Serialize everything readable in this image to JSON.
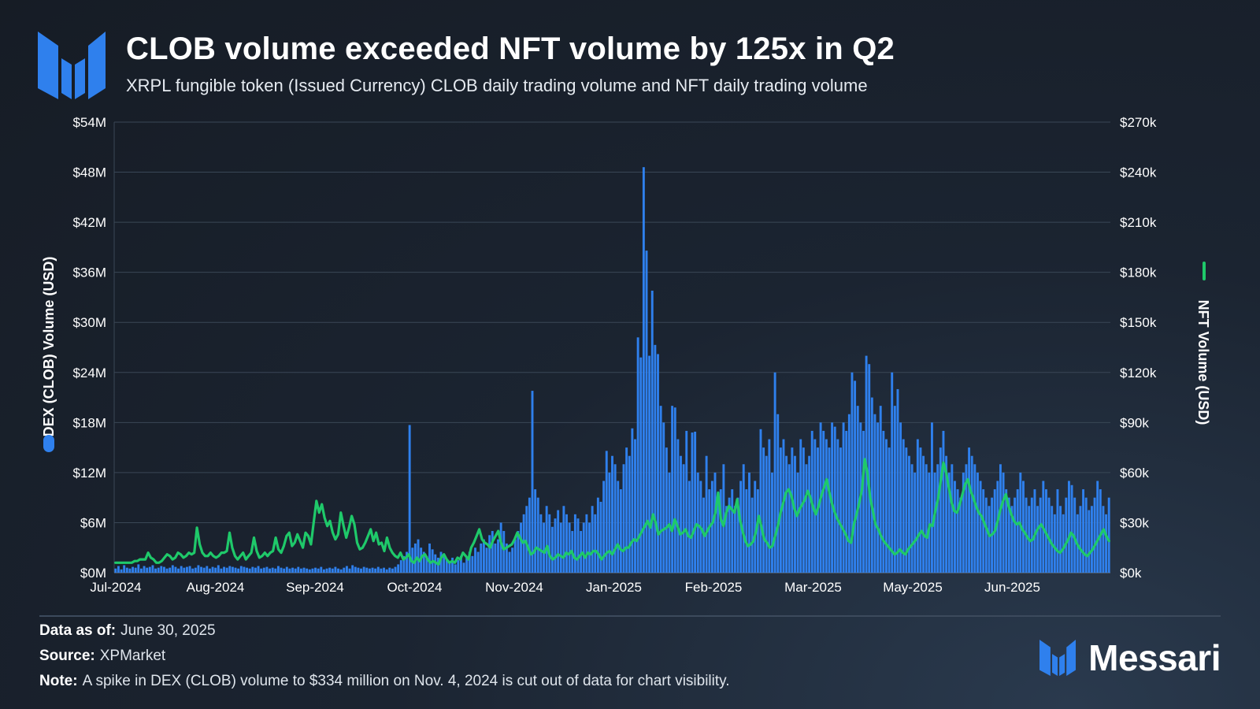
{
  "header": {
    "title": "CLOB volume exceeded NFT volume by 125x in Q2",
    "subtitle": "XRPL fungible token (Issued Currency) CLOB daily trading volume and NFT daily trading volume"
  },
  "footer": {
    "data_as_of_label": "Data as of:",
    "data_as_of_value": "June 30, 2025",
    "source_label": "Source:",
    "source_value": "XPMarket",
    "note_label": "Note:",
    "note_value": "A spike in DEX (CLOB) volume to $334 million on Nov. 4, 2024 is cut out of data for chart visibility."
  },
  "brand": {
    "name": "Messari"
  },
  "colors": {
    "bar": "#2f80ed",
    "line": "#1fc96a",
    "grid": "#3a4756",
    "axis_text": "#ffffff",
    "logo": "#2f80ed"
  },
  "chart_data": {
    "type": "bar+line",
    "title": "CLOB volume exceeded NFT volume by 125x in Q2",
    "x_tick_labels": [
      "Jul-2024",
      "Aug-2024",
      "Sep-2024",
      "Oct-2024",
      "Nov-2024",
      "Jan-2025",
      "Feb-2025",
      "Mar-2025",
      "May-2025",
      "Jun-2025"
    ],
    "left_axis": {
      "label": "DEX (CLOB) Volume (USD)",
      "ylim": [
        0,
        54
      ],
      "unit": "USD millions",
      "tick_labels": [
        "$0M",
        "$6M",
        "$12M",
        "$18M",
        "$24M",
        "$30M",
        "$36M",
        "$42M",
        "$48M",
        "$54M"
      ]
    },
    "right_axis": {
      "label": "NFT Volume (USD)",
      "ylim": [
        0,
        270
      ],
      "unit": "USD thousands",
      "tick_labels": [
        "$0k",
        "$30k",
        "$60k",
        "$90k",
        "$120k",
        "$150k",
        "$180k",
        "$210k",
        "$240k",
        "$270k"
      ]
    },
    "date_range": [
      "2024-07-01",
      "2025-06-30"
    ],
    "series": [
      {
        "name": "DEX (CLOB) Volume (USD)",
        "type": "bar",
        "axis": "left",
        "unit": "USD millions",
        "values": [
          0.5,
          0.8,
          0.4,
          0.9,
          0.6,
          0.5,
          0.7,
          0.6,
          1.0,
          0.5,
          0.8,
          0.6,
          0.7,
          0.9,
          0.5,
          0.6,
          0.8,
          0.7,
          0.5,
          0.6,
          0.9,
          0.7,
          0.5,
          0.8,
          0.6,
          0.7,
          0.8,
          0.5,
          0.6,
          0.9,
          0.7,
          0.6,
          0.8,
          0.5,
          0.7,
          0.6,
          0.9,
          0.5,
          0.7,
          0.6,
          0.8,
          0.7,
          0.6,
          0.5,
          0.8,
          0.7,
          0.6,
          0.5,
          0.7,
          0.6,
          0.8,
          0.5,
          0.6,
          0.7,
          0.5,
          0.6,
          0.5,
          0.8,
          0.6,
          0.5,
          0.7,
          0.5,
          0.6,
          0.5,
          0.7,
          0.5,
          0.6,
          0.5,
          0.4,
          0.5,
          0.6,
          0.5,
          0.7,
          0.4,
          0.5,
          0.6,
          0.5,
          0.7,
          0.5,
          0.4,
          0.6,
          0.8,
          0.5,
          0.9,
          0.7,
          0.6,
          0.5,
          0.7,
          0.6,
          0.5,
          0.6,
          0.5,
          0.7,
          0.5,
          0.6,
          0.4,
          0.6,
          0.5,
          0.7,
          1.0,
          1.5,
          2.0,
          2.5,
          17.7,
          3.0,
          3.5,
          4.0,
          3.0,
          2.5,
          2.0,
          3.5,
          2.8,
          2.2,
          1.8,
          2.5,
          2.0,
          1.5,
          1.2,
          1.8,
          1.0,
          1.5,
          2.0,
          1.2,
          1.8,
          2.5,
          2.0,
          3.0,
          2.5,
          3.5,
          4.0,
          3.0,
          4.5,
          5.0,
          3.5,
          4.0,
          6.0,
          5.0,
          3.5,
          2.5,
          3.0,
          4.0,
          5.0,
          6.0,
          7.0,
          8.0,
          9.0,
          21.8,
          10.0,
          9.0,
          7.0,
          6.0,
          8.0,
          7.0,
          5.5,
          6.5,
          7.5,
          6.0,
          8.0,
          7.0,
          6.0,
          5.0,
          7.0,
          6.5,
          5.0,
          6.0,
          7.0,
          6.0,
          8.0,
          7.0,
          9.0,
          8.5,
          11.0,
          14.6,
          12.0,
          14.0,
          13.0,
          11.0,
          10.0,
          13.0,
          15.0,
          14.0,
          17.3,
          16.0,
          28.2,
          25.8,
          48.6,
          38.6,
          26.0,
          33.8,
          27.3,
          26.2,
          20.0,
          18.0,
          15.0,
          12.0,
          20.0,
          19.8,
          16.0,
          14.0,
          13.0,
          17.0,
          11.0,
          16.8,
          16.9,
          12.0,
          11.0,
          9.0,
          14.0,
          10.0,
          11.0,
          12.0,
          9.0,
          10.0,
          13.0,
          8.0,
          9.0,
          10.0,
          8.0,
          9.0,
          11.0,
          13.0,
          10.0,
          12.0,
          9.0,
          11.0,
          10.0,
          17.2,
          15.0,
          14.0,
          16.0,
          12.0,
          24.0,
          19.0,
          15.0,
          16.0,
          14.0,
          13.0,
          15.0,
          14.0,
          12.0,
          16.0,
          15.0,
          13.0,
          14.0,
          17.0,
          16.0,
          15.0,
          18.0,
          17.0,
          16.0,
          15.0,
          18.0,
          17.5,
          16.0,
          15.0,
          18.0,
          17.0,
          19.0,
          24.0,
          23.0,
          20.0,
          18.0,
          17.0,
          26.0,
          25.0,
          21.0,
          19.0,
          18.0,
          20.0,
          17.0,
          16.0,
          15.0,
          24.0,
          20.0,
          22.0,
          18.0,
          16.0,
          15.0,
          14.0,
          13.0,
          12.0,
          16.0,
          15.0,
          14.0,
          13.0,
          12.0,
          18.0,
          12.0,
          13.0,
          15.0,
          17.0,
          14.0,
          12.0,
          13.0,
          11.0,
          10.0,
          9.0,
          12.0,
          13.0,
          15.0,
          14.0,
          13.0,
          12.0,
          11.0,
          10.0,
          9.0,
          8.0,
          9.0,
          10.0,
          11.0,
          13.0,
          12.0,
          10.0,
          9.0,
          8.0,
          9.0,
          10.0,
          12.0,
          11.0,
          9.0,
          8.0,
          9.0,
          10.0,
          8.0,
          9.0,
          11.0,
          10.0,
          9.0,
          8.0,
          7.0,
          10.0,
          8.0,
          7.0,
          9.0,
          11.0,
          10.5,
          9.0,
          7.0,
          8.0,
          10.0,
          9.0,
          7.5,
          8.0,
          9.0,
          11.0,
          10.0,
          8.0,
          7.0,
          9.0
        ],
        "notes": "Approximate daily values estimated from gridlines; Nov 4, 2024 spike ($334M) excluded as stated in chart note."
      },
      {
        "name": "NFT Volume (USD)",
        "type": "line",
        "axis": "right",
        "unit": "USD thousands",
        "values": [
          6,
          6,
          6,
          6,
          6,
          6,
          6,
          7,
          7,
          8,
          8,
          8,
          12,
          9,
          8,
          6,
          6,
          7,
          9,
          11,
          10,
          8,
          9,
          12,
          11,
          9,
          10,
          12,
          11,
          12,
          27,
          17,
          12,
          10,
          10,
          12,
          10,
          9,
          10,
          12,
          12,
          13,
          24,
          15,
          10,
          8,
          10,
          12,
          8,
          10,
          12,
          21,
          13,
          9,
          10,
          12,
          10,
          12,
          13,
          21,
          14,
          12,
          16,
          22,
          24,
          16,
          18,
          23,
          19,
          15,
          24,
          22,
          17,
          30,
          43,
          36,
          41,
          33,
          28,
          31,
          24,
          20,
          23,
          36,
          28,
          21,
          27,
          34,
          29,
          18,
          14,
          15,
          18,
          22,
          26,
          19,
          24,
          17,
          18,
          13,
          21,
          15,
          12,
          10,
          9,
          12,
          8,
          9,
          11,
          7,
          6,
          9,
          7,
          10,
          11,
          8,
          6,
          7,
          6,
          5,
          9,
          11,
          8,
          6,
          7,
          6,
          9,
          8,
          12,
          10,
          8,
          15,
          18,
          22,
          26,
          20,
          18,
          17,
          15,
          19,
          22,
          25,
          18,
          14,
          15,
          16,
          17,
          20,
          24,
          21,
          18,
          19,
          15,
          11,
          12,
          15,
          14,
          13,
          12,
          16,
          10,
          8,
          9,
          11,
          10,
          9,
          12,
          11,
          13,
          9,
          8,
          10,
          12,
          9,
          12,
          11,
          13,
          13,
          11,
          8,
          10,
          12,
          13,
          11,
          14,
          17,
          14,
          13,
          15,
          15,
          18,
          20,
          19,
          22,
          25,
          28,
          31,
          27,
          35,
          30,
          23,
          25,
          26,
          27,
          29,
          25,
          32,
          28,
          23,
          24,
          26,
          22,
          21,
          25,
          29,
          28,
          26,
          22,
          25,
          28,
          30,
          36,
          48,
          32,
          28,
          36,
          40,
          38,
          36,
          44,
          32,
          25,
          19,
          16,
          17,
          19,
          25,
          34,
          27,
          20,
          18,
          15,
          16,
          22,
          28,
          36,
          42,
          48,
          50,
          46,
          39,
          34,
          38,
          41,
          44,
          49,
          45,
          39,
          35,
          40,
          46,
          51,
          56,
          48,
          41,
          36,
          32,
          29,
          26,
          23,
          19,
          18,
          29,
          35,
          42,
          50,
          68,
          60,
          45,
          37,
          29,
          26,
          22,
          19,
          17,
          15,
          13,
          11,
          12,
          14,
          12,
          11,
          14,
          16,
          18,
          20,
          23,
          25,
          22,
          21,
          29,
          28,
          37,
          44,
          55,
          66,
          60,
          51,
          42,
          37,
          36,
          41,
          47,
          53,
          56,
          49,
          45,
          40,
          36,
          34,
          30,
          26,
          22,
          23,
          25,
          31,
          38,
          43,
          47,
          40,
          35,
          31,
          29,
          30,
          26,
          24,
          21,
          19,
          20,
          24,
          27,
          29,
          26,
          23,
          20,
          17,
          15,
          13,
          12,
          14,
          17,
          20,
          24,
          22,
          18,
          15,
          13,
          11,
          10,
          12,
          14,
          17,
          20,
          23,
          26,
          22,
          19
        ],
        "notes": "Smoothed approximation of the green NFT line traced from the chart."
      }
    ]
  }
}
